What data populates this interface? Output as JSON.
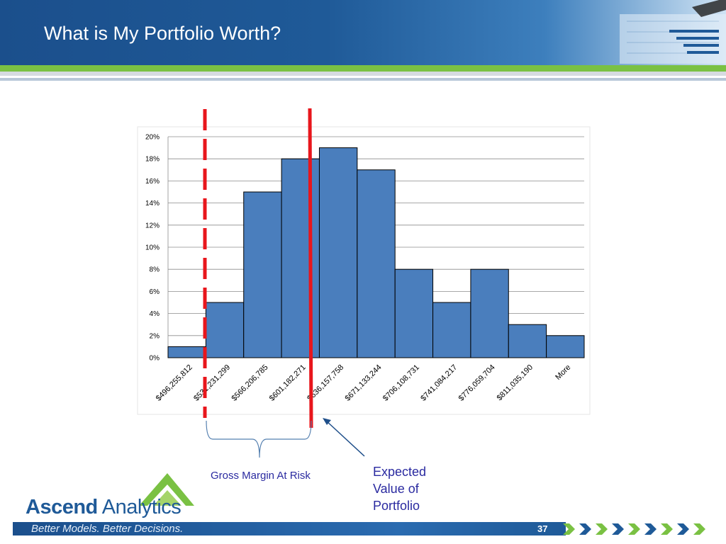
{
  "slide": {
    "title": "What is My Portfolio Worth?",
    "annotation_gross_margin": "Gross Margin At Risk",
    "annotation_expected_value": "Expected Value of Portfolio",
    "logo_bold": "Ascend",
    "logo_regular": " Analytics",
    "tagline": "Better Models. Better Decisions.",
    "page_number": "37",
    "colors": {
      "header_blue": "#1f5a98",
      "accent_green": "#7ac143",
      "bar_fill": "#4a7ebd",
      "marker_red": "#e8161c",
      "annotation_blue": "#2a2aa0"
    }
  },
  "chart_data": {
    "type": "bar",
    "categories": [
      "$496,255,812",
      "$531,231,299",
      "$566,206,785",
      "$601,182,271",
      "$636,157,758",
      "$671,133,244",
      "$706,108,731",
      "$741,084,217",
      "$776,059,704",
      "$811,035,190",
      "More"
    ],
    "values": [
      1,
      5,
      15,
      18,
      19,
      17,
      8,
      5,
      8,
      3,
      2
    ],
    "ylim": [
      0,
      20
    ],
    "yticks": [
      "0%",
      "2%",
      "4%",
      "6%",
      "8%",
      "10%",
      "12%",
      "14%",
      "16%",
      "18%",
      "20%"
    ],
    "grid": true,
    "legend": "none"
  }
}
